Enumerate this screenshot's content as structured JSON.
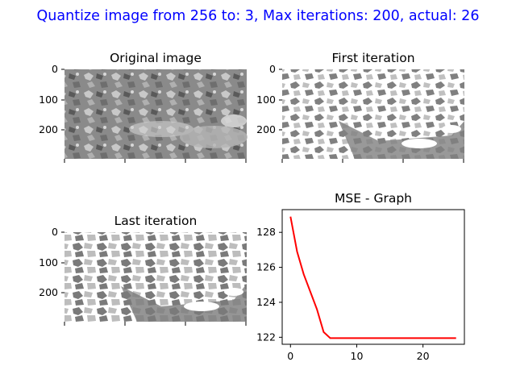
{
  "figure": {
    "suptitle": "Quantize image from 256 to: 3, Max iterations: 200, actual: 26",
    "suptitle_color": "#0000ff"
  },
  "panels": {
    "original": {
      "title": "Original image",
      "y_ticks": [
        "0",
        "100",
        "200"
      ]
    },
    "first": {
      "title": "First iteration",
      "y_ticks": [
        "0",
        "100",
        "200"
      ]
    },
    "last": {
      "title": "Last iteration",
      "y_ticks": [
        "0",
        "100",
        "200"
      ]
    }
  },
  "chart_data": [
    {
      "type": "line",
      "title": "MSE - Graph",
      "xlabel": "",
      "ylabel": "",
      "xlim": [
        -1.25,
        26.25
      ],
      "ylim": [
        121.6,
        129.3
      ],
      "x_ticks": [
        0,
        10,
        20
      ],
      "y_ticks": [
        122,
        124,
        126,
        128
      ],
      "grid": false,
      "series": [
        {
          "color": "#ff0000",
          "x": [
            0,
            1,
            2,
            3,
            4,
            5,
            6,
            7,
            8,
            9,
            10,
            11,
            12,
            13,
            14,
            15,
            16,
            17,
            18,
            19,
            20,
            21,
            22,
            23,
            24,
            25
          ],
          "values": [
            128.9,
            126.9,
            125.6,
            124.6,
            123.6,
            122.3,
            121.95,
            121.95,
            121.95,
            121.95,
            121.95,
            121.95,
            121.95,
            121.95,
            121.95,
            121.95,
            121.95,
            121.95,
            121.95,
            121.95,
            121.95,
            121.95,
            121.95,
            121.95,
            121.95,
            121.95
          ]
        }
      ]
    }
  ]
}
